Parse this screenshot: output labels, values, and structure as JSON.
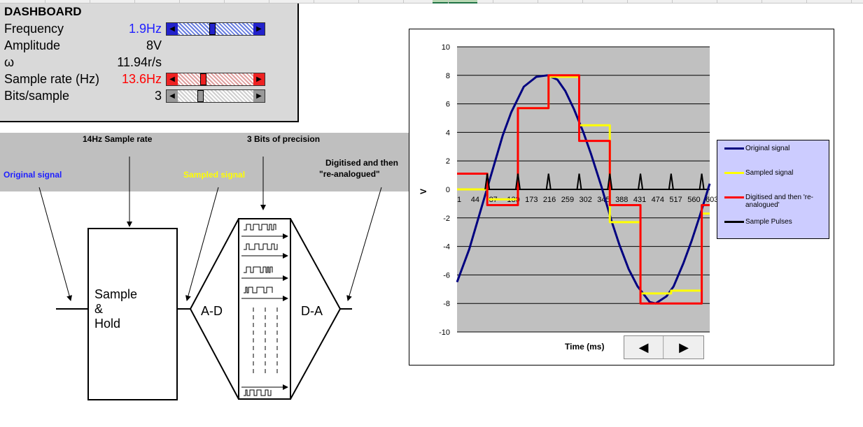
{
  "dashboard": {
    "title": "DASHBOARD",
    "rows": [
      {
        "label": "Frequency",
        "value": "1.9Hz",
        "value_color": "#1f1fff",
        "slider": {
          "color": "#2222cc",
          "fill": "#6a7fe0",
          "level": 0.45
        }
      },
      {
        "label": "Amplitude",
        "value": "8V",
        "value_color": "#000000"
      },
      {
        "label": "ω",
        "value": "11.94r/s",
        "value_color": "#000000"
      },
      {
        "label": "Sample rate (Hz)",
        "value": "13.6Hz",
        "value_color": "#ff0000",
        "slider": {
          "color": "#ee2222",
          "fill": "#e0a0a0",
          "level": 0.32
        }
      },
      {
        "label": "Bits/sample",
        "value": "3",
        "value_color": "#000000",
        "slider": {
          "color": "#999999",
          "fill": "#cfcfcf",
          "level": 0.28
        }
      }
    ]
  },
  "diagram": {
    "sample_rate_label": "14Hz  Sample rate",
    "bits_label": "3 Bits of precision",
    "original_signal": "Original signal",
    "sampled_signal": "Sampled signal",
    "digitised_line1": "Digitised and then",
    "digitised_line2": "\"re-analogued\"",
    "sample_hold_1": "Sample",
    "sample_hold_2": "&",
    "sample_hold_3": "Hold",
    "ad": "A-D",
    "da": "D-A",
    "colors": {
      "original": "#1f1fff",
      "sampled": "#ffff00"
    }
  },
  "chart_data": {
    "type": "line",
    "ylabel": "V",
    "xlabel": "Time (ms)",
    "ylim": [
      -10,
      10
    ],
    "yticks": [
      10,
      8,
      6,
      4,
      2,
      0,
      -2,
      -4,
      -6,
      -8,
      -10
    ],
    "xticks": [
      "1",
      "44",
      "87",
      "130",
      "173",
      "216",
      "259",
      "302",
      "345",
      "388",
      "431",
      "474",
      "517",
      "560",
      "603"
    ],
    "xlim": [
      1,
      603
    ],
    "grid": true,
    "legend_placement": "right",
    "series": [
      {
        "name": "Original signal",
        "color": "#000080",
        "x": [
          1,
          30,
          60,
          87,
          110,
          130,
          160,
          190,
          216,
          240,
          259,
          280,
          302,
          320,
          345,
          370,
          388,
          410,
          431,
          460,
          474,
          500,
          517,
          540,
          560,
          580,
          603
        ],
        "y": [
          -6.5,
          -4.2,
          -1.2,
          1.5,
          3.8,
          5.4,
          7.2,
          7.9,
          8.0,
          7.7,
          6.9,
          5.6,
          4.0,
          2.5,
          0.2,
          -2.3,
          -3.9,
          -5.6,
          -6.8,
          -7.9,
          -8.0,
          -7.5,
          -6.8,
          -5.2,
          -3.6,
          -1.8,
          0.4
        ]
      },
      {
        "name": "Sampled signal",
        "color": "#ffff00",
        "x": [
          1,
          73,
          73,
          146,
          146,
          219,
          219,
          292,
          292,
          365,
          365,
          438,
          438,
          511,
          511,
          584,
          584,
          603
        ],
        "y": [
          0,
          0,
          -0.7,
          -0.7,
          5.7,
          5.7,
          7.9,
          7.9,
          4.5,
          4.5,
          -2.3,
          -2.3,
          -7.3,
          -7.3,
          -7.1,
          -7.1,
          -1.7,
          -1.7
        ]
      },
      {
        "name": "Digitised and then 're-analogued'",
        "color": "#ff0000",
        "x": [
          1,
          73,
          73,
          146,
          146,
          219,
          219,
          292,
          292,
          365,
          365,
          438,
          438,
          511,
          511,
          584,
          584,
          603
        ],
        "y": [
          1.1,
          1.1,
          -1.1,
          -1.1,
          5.7,
          5.7,
          8.0,
          8.0,
          3.4,
          3.4,
          -1.1,
          -1.1,
          -8.0,
          -8.0,
          -8.0,
          -8.0,
          -1.1,
          -1.1
        ]
      },
      {
        "name": "Sample Pulses",
        "color": "#000000",
        "x": [
          73,
          146,
          219,
          292,
          365,
          438,
          511,
          584
        ],
        "y": [
          1.1,
          1.1,
          1.1,
          1.1,
          1.1,
          1.1,
          1.1,
          1.1
        ]
      }
    ]
  },
  "nav": {
    "prev": "◀",
    "next": "▶"
  }
}
